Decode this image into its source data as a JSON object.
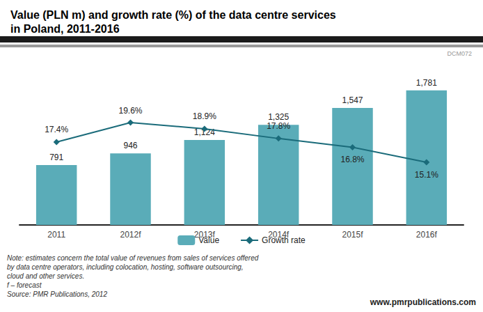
{
  "chart_data": {
    "type": "bar",
    "title": "Value (PLN m) and growth rate (%) of the data centre services\nin Poland, 2011-2016",
    "watermark": "DCM072",
    "note": [
      "Note: estimates concern the total value of revenues from sales of services offered",
      "by data centre operators, including colocation, hosting, software outsourcing,",
      "cloud and other services.",
      "f – forecast",
      "Source: PMR Publications, 2012"
    ],
    "website": "www.pmrpublications.com",
    "categories": [
      "2011",
      "2012f",
      "2013f",
      "2014f",
      "2015f",
      "2016f"
    ],
    "series": [
      {
        "name": "Value",
        "type": "bar",
        "color": "#5aacb8",
        "values": [
          791,
          946,
          1124,
          1325,
          1547,
          1781
        ],
        "value_labels": [
          "791",
          "946",
          "1,124",
          "1,325",
          "1,547",
          "1,781"
        ]
      },
      {
        "name": "Growth rate",
        "type": "line",
        "axis": "y2",
        "color": "#1a6b7a",
        "marker": "diamond",
        "values": [
          17.4,
          19.6,
          18.9,
          17.8,
          16.8,
          15.1
        ],
        "value_labels": [
          "17.4%",
          "19.6%",
          "18.9%",
          "17.8%",
          "16.8%",
          "15.1%"
        ]
      }
    ],
    "ylim": [
      0,
      2100
    ],
    "y2lim": [
      8,
      26
    ],
    "grid": false,
    "legend": "bottom",
    "data_labels": true,
    "tick_labels": "x"
  }
}
